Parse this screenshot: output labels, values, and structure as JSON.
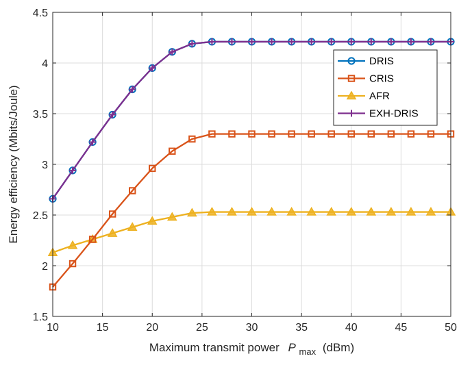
{
  "chart_data": {
    "type": "line",
    "x": [
      10,
      12,
      14,
      16,
      18,
      20,
      22,
      24,
      26,
      28,
      30,
      32,
      34,
      36,
      38,
      40,
      42,
      44,
      46,
      48,
      50
    ],
    "xlabel": {
      "main": "Maximum transmit power",
      "symbol": "P",
      "subscript": "max",
      "unit": "(dBm)"
    },
    "ylabel": "Energy efficiency (Mbits/Joule)",
    "xlim": [
      10,
      50
    ],
    "ylim": [
      1.5,
      4.5
    ],
    "xticks": [
      "10",
      "15",
      "20",
      "25",
      "30",
      "35",
      "40",
      "45",
      "50"
    ],
    "yticks": [
      "1.5",
      "2",
      "2.5",
      "3",
      "3.5",
      "4",
      "4.5"
    ],
    "grid": true,
    "legend_position": "top-right",
    "series": [
      {
        "name": "DRIS",
        "color": "#0072BD",
        "marker": "circle",
        "values": [
          2.66,
          2.94,
          3.22,
          3.49,
          3.74,
          3.95,
          4.11,
          4.19,
          4.21,
          4.21,
          4.21,
          4.21,
          4.21,
          4.21,
          4.21,
          4.21,
          4.21,
          4.21,
          4.21,
          4.21,
          4.21
        ]
      },
      {
        "name": "CRIS",
        "color": "#D95319",
        "marker": "square",
        "values": [
          1.79,
          2.02,
          2.26,
          2.51,
          2.74,
          2.96,
          3.13,
          3.25,
          3.3,
          3.3,
          3.3,
          3.3,
          3.3,
          3.3,
          3.3,
          3.3,
          3.3,
          3.3,
          3.3,
          3.3,
          3.3
        ]
      },
      {
        "name": "AFR",
        "color": "#EDB120",
        "marker": "triangle",
        "values": [
          2.13,
          2.2,
          2.26,
          2.32,
          2.38,
          2.44,
          2.48,
          2.52,
          2.53,
          2.53,
          2.53,
          2.53,
          2.53,
          2.53,
          2.53,
          2.53,
          2.53,
          2.53,
          2.53,
          2.53,
          2.53
        ]
      },
      {
        "name": "EXH-DRIS",
        "color": "#7E2F8E",
        "marker": "plus",
        "values": [
          2.66,
          2.94,
          3.22,
          3.49,
          3.74,
          3.95,
          4.11,
          4.19,
          4.21,
          4.21,
          4.21,
          4.21,
          4.21,
          4.21,
          4.21,
          4.21,
          4.21,
          4.21,
          4.21,
          4.21,
          4.21
        ]
      }
    ]
  }
}
